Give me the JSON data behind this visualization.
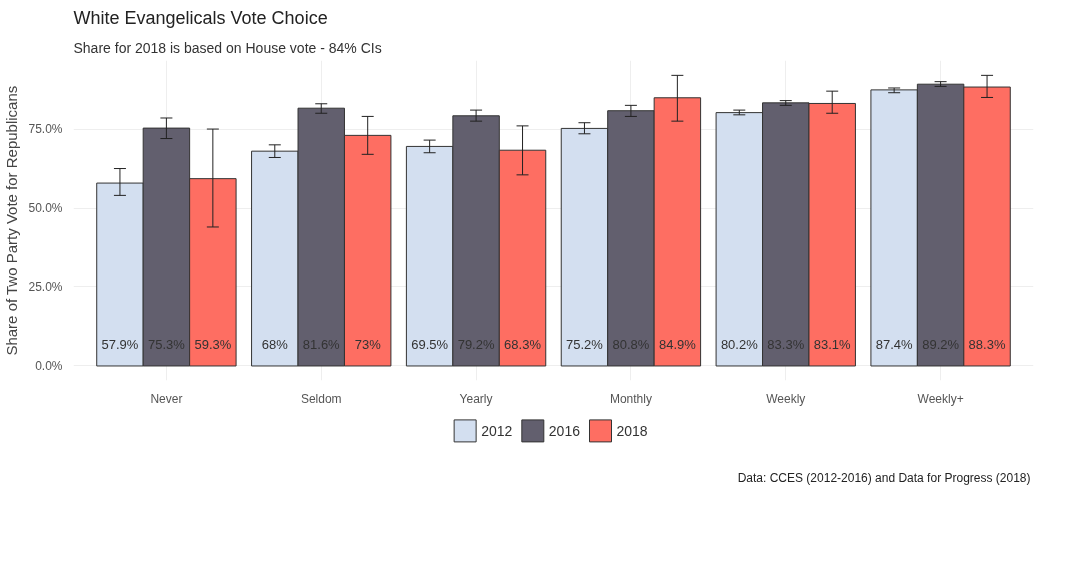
{
  "chart_data": {
    "type": "bar",
    "title": "White Evangelicals Vote Choice",
    "subtitle": "Share for 2018 is based on House vote - 84% CIs",
    "ylabel": "Share of Two Party Vote for Republicans",
    "categories": [
      "Never",
      "Seldom",
      "Yearly",
      "Monthly",
      "Weekly",
      "Weekly+"
    ],
    "series": [
      {
        "name": "2012",
        "color": "#d3dff0",
        "values": [
          57.9,
          68,
          69.5,
          75.2,
          80.2,
          87.4
        ],
        "value_labels": [
          "57.9%",
          "68%",
          "69.5%",
          "75.2%",
          "80.2%",
          "87.4%"
        ],
        "errors": [
          [
            54,
            62.5
          ],
          [
            66,
            70
          ],
          [
            67.5,
            71.5
          ],
          [
            73.5,
            77
          ],
          [
            79.5,
            81
          ],
          [
            86.5,
            88
          ]
        ]
      },
      {
        "name": "2016",
        "color": "#625f6e",
        "values": [
          75.3,
          81.6,
          79.2,
          80.8,
          83.3,
          89.2
        ],
        "value_labels": [
          "75.3%",
          "81.6%",
          "79.2%",
          "80.8%",
          "83.3%",
          "89.2%"
        ],
        "errors": [
          [
            72,
            78.5
          ],
          [
            80,
            83
          ],
          [
            77.5,
            81
          ],
          [
            79,
            82.5
          ],
          [
            82.5,
            84
          ],
          [
            88.5,
            90
          ]
        ]
      },
      {
        "name": "2018",
        "color": "#fe6e62",
        "values": [
          59.3,
          73,
          68.3,
          84.9,
          83.1,
          88.3
        ],
        "value_labels": [
          "59.3%",
          "73%",
          "68.3%",
          "84.9%",
          "83.1%",
          "88.3%"
        ],
        "errors": [
          [
            44,
            75
          ],
          [
            67,
            79
          ],
          [
            60.5,
            76
          ],
          [
            77.5,
            92
          ],
          [
            80,
            87
          ],
          [
            85,
            92
          ]
        ]
      }
    ],
    "ylim": [
      -4.6,
      96.7
    ],
    "yticks": [
      {
        "value": 0,
        "label": "0.0%"
      },
      {
        "value": 25,
        "label": "25.0%"
      },
      {
        "value": 50,
        "label": "50.0%"
      },
      {
        "value": 75,
        "label": "75.0%"
      }
    ],
    "grid": true,
    "legend": "bottom",
    "annotations": [
      "Data: CCES (2012-2016) and Data for Progress (2018)"
    ]
  }
}
